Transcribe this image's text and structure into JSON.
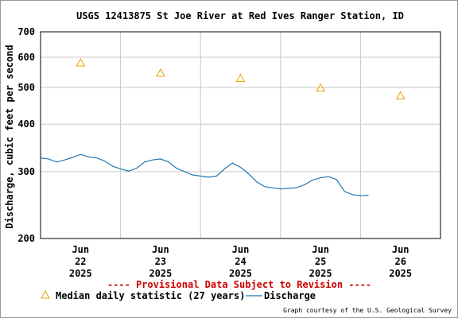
{
  "chart_data": {
    "type": "line",
    "title": "USGS 12413875 St Joe River at Red Ives Ranger Station, ID",
    "ylabel": "Discharge, cubic feet per second",
    "xlabel": "",
    "yscale": "log",
    "ylim": [
      200,
      700
    ],
    "yticks": [
      200,
      300,
      400,
      500,
      600,
      700
    ],
    "xlim": [
      -0.5,
      4.5
    ],
    "xticks": [
      {
        "x": 0,
        "lines": [
          "Jun",
          "22",
          "2025"
        ]
      },
      {
        "x": 1,
        "lines": [
          "Jun",
          "23",
          "2025"
        ]
      },
      {
        "x": 2,
        "lines": [
          "Jun",
          "24",
          "2025"
        ]
      },
      {
        "x": 3,
        "lines": [
          "Jun",
          "25",
          "2025"
        ]
      },
      {
        "x": 4,
        "lines": [
          "Jun",
          "26",
          "2025"
        ]
      }
    ],
    "grid": true,
    "colors": {
      "discharge": "#1f77b4",
      "median": "#e8a000",
      "provisional": "#cc0000",
      "grid": "#c8c8c8"
    },
    "series": [
      {
        "name": "Median daily statistic (27 years)",
        "type": "scatter",
        "marker": "triangle",
        "x": [
          0,
          1,
          2,
          3,
          4
        ],
        "y": [
          580,
          545,
          528,
          498,
          475
        ]
      },
      {
        "name": "Discharge",
        "type": "line",
        "x": [
          -0.5,
          -0.4,
          -0.3,
          -0.2,
          -0.1,
          0,
          0.1,
          0.2,
          0.3,
          0.4,
          0.5,
          0.6,
          0.7,
          0.8,
          0.9,
          1.0,
          1.1,
          1.2,
          1.3,
          1.4,
          1.5,
          1.6,
          1.7,
          1.8,
          1.9,
          2.0,
          2.1,
          2.2,
          2.3,
          2.4,
          2.5,
          2.6,
          2.7,
          2.8,
          2.9,
          3.0,
          3.1,
          3.2,
          3.3,
          3.4,
          3.5,
          3.6
        ],
        "y": [
          326,
          324,
          318,
          322,
          327,
          333,
          328,
          326,
          320,
          310,
          305,
          301,
          306,
          318,
          322,
          324,
          318,
          306,
          300,
          294,
          292,
          290,
          292,
          305,
          316,
          308,
          296,
          282,
          274,
          272,
          270,
          271,
          272,
          277,
          285,
          289,
          291,
          286,
          266,
          261,
          259,
          260
        ]
      }
    ]
  },
  "provisional_text": "---- Provisional Data Subject to Revision ----",
  "legend": {
    "median_label": "Median daily statistic (27 years)",
    "discharge_label": "Discharge"
  },
  "credit": "Graph courtesy of the U.S. Geological Survey"
}
